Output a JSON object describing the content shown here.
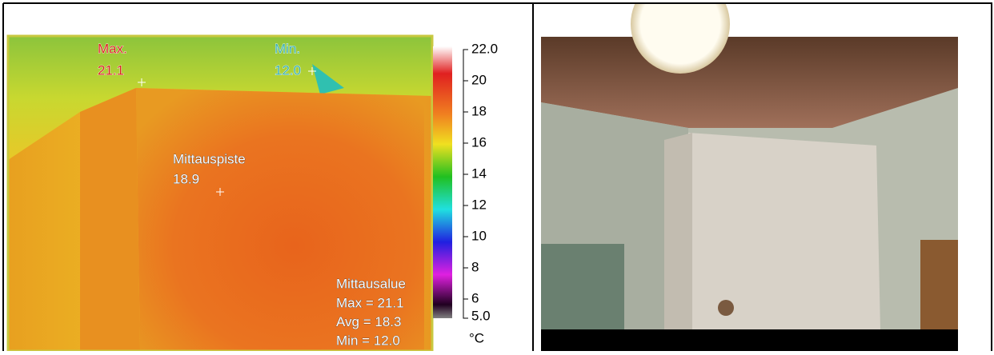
{
  "thermal": {
    "max_marker": {
      "label": "Max.",
      "value": "21.1"
    },
    "min_marker": {
      "label": "Min.",
      "value": "12.0"
    },
    "spot": {
      "label": "Mittauspiste",
      "value": "18.9"
    },
    "area": {
      "label": "Mittausalue",
      "lines": [
        "Max = 21.1",
        "Avg = 18.3",
        "Min = 12.0"
      ]
    },
    "scale": {
      "ticks": [
        "22.0",
        "20",
        "18",
        "16",
        "14",
        "12",
        "10",
        "8",
        "6",
        "5.0"
      ],
      "unit": "°C"
    }
  }
}
